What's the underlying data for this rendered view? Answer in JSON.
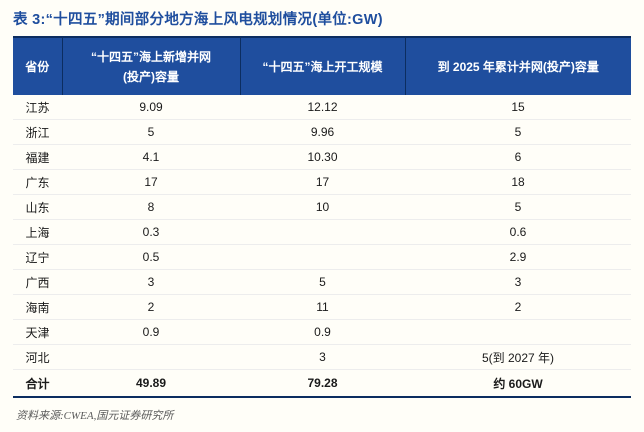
{
  "title": "表 3:“十四五”期间部分地方海上风电规划情况(单位:GW)",
  "colors": {
    "header_bg": "#1F4E9E",
    "title_text": "#1F4E9E",
    "border_dark": "#0C2D60",
    "row_line": "#EDEDED",
    "footer_text": "#5A5A5A",
    "page_bg": "#FFFEF8"
  },
  "table": {
    "columns": [
      {
        "label": "省份"
      },
      {
        "line1": "“十四五”海上新增并网",
        "line2": "(投产)容量"
      },
      {
        "label": "“十四五”海上开工规模"
      },
      {
        "label": "到 2025 年累计并网(投产)容量"
      }
    ],
    "rows": [
      {
        "cells": [
          "江苏",
          "9.09",
          "12.12",
          "15"
        ],
        "bold": false
      },
      {
        "cells": [
          "浙江",
          "5",
          "9.96",
          "5"
        ],
        "bold": false
      },
      {
        "cells": [
          "福建",
          "4.1",
          "10.30",
          "6"
        ],
        "bold": false
      },
      {
        "cells": [
          "广东",
          "17",
          "17",
          "18"
        ],
        "bold": false
      },
      {
        "cells": [
          "山东",
          "8",
          "10",
          "5"
        ],
        "bold": false
      },
      {
        "cells": [
          "上海",
          "0.3",
          "",
          "0.6"
        ],
        "bold": false
      },
      {
        "cells": [
          "辽宁",
          "0.5",
          "",
          "2.9"
        ],
        "bold": false
      },
      {
        "cells": [
          "广西",
          "3",
          "5",
          "3"
        ],
        "bold": false
      },
      {
        "cells": [
          "海南",
          "2",
          "11",
          "2"
        ],
        "bold": false
      },
      {
        "cells": [
          "天津",
          "0.9",
          "0.9",
          ""
        ],
        "bold": false
      },
      {
        "cells": [
          "河北",
          "",
          "3",
          "5(到 2027 年)"
        ],
        "bold": false
      },
      {
        "cells": [
          "合计",
          "49.89",
          "79.28",
          "约 60GW"
        ],
        "bold": true
      }
    ]
  },
  "footer": {
    "source_label": "资料来源:",
    "source_text": "CWEA,国元证券研究所"
  }
}
